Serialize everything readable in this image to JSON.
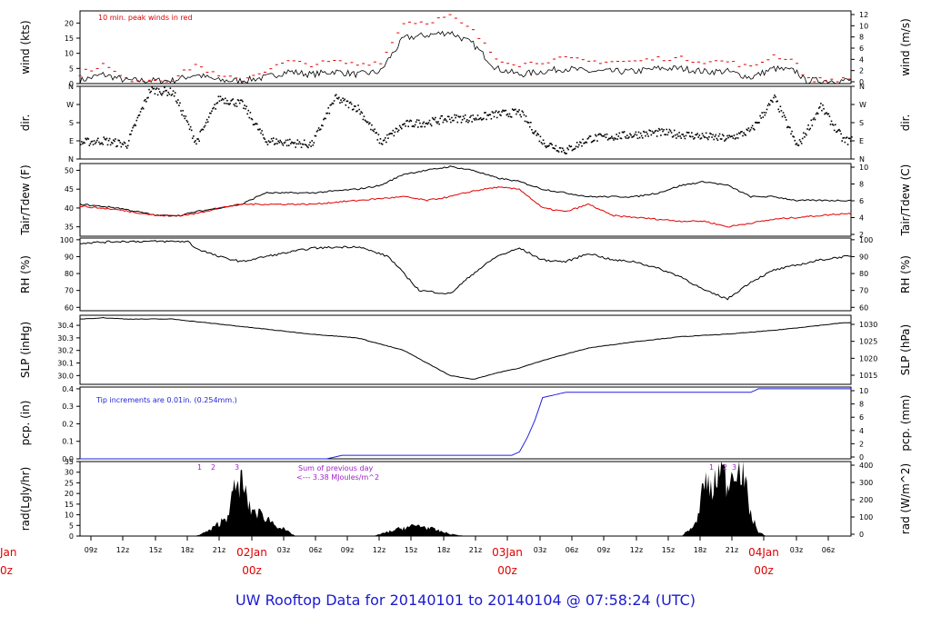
{
  "footer_title": "UW Rooftop Data for 20140101  to  20140104 @ 07:58:24  (UTC)",
  "x_ticks": [
    "09z",
    "12z",
    "15z",
    "18z",
    "21z",
    "00z",
    "03z",
    "06z",
    "09z",
    "12z",
    "15z",
    "18z",
    "21z",
    "00z",
    "03z",
    "06z",
    "09z",
    "12z",
    "15z",
    "18z",
    "21z",
    "00z",
    "03z",
    "06z"
  ],
  "day_labels": [
    {
      "date": "02Jan",
      "time": "00z"
    },
    {
      "date": "03Jan",
      "time": "00z"
    },
    {
      "date": "04Jan",
      "time": "00z"
    }
  ],
  "clipped_day_label": {
    "date": "Jan",
    "time": "0z"
  },
  "colors": {
    "accent_red": "#e00000",
    "title_blue": "#1a1ad0",
    "precip_blue": "#2222dd",
    "annotation_purple": "#a020c8",
    "trace": "#000000",
    "frame": "#000000"
  },
  "chart_data": [
    {
      "type": "line",
      "panel": "wind",
      "ylabel": "wind (kts)",
      "ylabel_right": "wind (m/s)",
      "ylim": [
        0,
        24
      ],
      "yticks": [
        0,
        5,
        10,
        15,
        20
      ],
      "yticks_right": [
        0,
        2,
        4,
        6,
        8,
        10,
        12
      ],
      "annotation": "10 min. peak winds in red",
      "series": [
        {
          "name": "wind",
          "color": "#000000",
          "x": [
            0,
            3,
            6,
            9,
            12,
            15,
            18,
            21,
            24,
            27,
            30,
            33,
            36,
            39,
            40,
            42,
            45,
            48,
            51,
            54,
            57,
            60,
            63,
            66,
            69,
            72,
            75,
            78,
            81,
            84,
            87,
            90,
            93,
            94,
            96,
            99
          ],
          "values": [
            1,
            3,
            1,
            1,
            1,
            3,
            1,
            1,
            2,
            4,
            3,
            4,
            3,
            4,
            8,
            15,
            16,
            17,
            13,
            5,
            3,
            4,
            5,
            4,
            4,
            4,
            5,
            5,
            4,
            4,
            2,
            5,
            4,
            1,
            1,
            1
          ]
        },
        {
          "name": "peak",
          "color": "#e00000",
          "x": [
            0,
            3,
            6,
            9,
            12,
            15,
            18,
            21,
            24,
            27,
            30,
            33,
            36,
            39,
            40,
            42,
            45,
            48,
            51,
            54,
            57,
            60,
            63,
            66,
            69,
            72,
            75,
            78,
            81,
            84,
            87,
            90,
            93,
            94,
            96,
            99
          ],
          "values": [
            3,
            6,
            1,
            1,
            1,
            6,
            2,
            1,
            4,
            7,
            6,
            7,
            6,
            7,
            11,
            20,
            20,
            22,
            17,
            8,
            6,
            7,
            8,
            7,
            7,
            7,
            8,
            8,
            7,
            7,
            5,
            9,
            7,
            1,
            1,
            1
          ]
        }
      ]
    },
    {
      "type": "scatter",
      "panel": "direction",
      "ylabel": "dir.",
      "ylabel_right": "dir.",
      "yticks_labels": [
        "N",
        "W",
        "S",
        "E",
        "N"
      ],
      "yticks_values": [
        360,
        270,
        180,
        90,
        0
      ],
      "ylim": [
        0,
        360
      ],
      "series": [
        {
          "name": "direction",
          "x": [
            0,
            3,
            6,
            9,
            12,
            15,
            18,
            21,
            24,
            27,
            30,
            33,
            36,
            39,
            42,
            45,
            48,
            51,
            54,
            57,
            60,
            63,
            66,
            69,
            72,
            75,
            78,
            81,
            84,
            87,
            90,
            93,
            96,
            99
          ],
          "values": [
            80,
            90,
            70,
            340,
            330,
            80,
            300,
            270,
            90,
            80,
            70,
            300,
            250,
            80,
            170,
            180,
            200,
            200,
            220,
            230,
            80,
            40,
            100,
            110,
            120,
            130,
            120,
            110,
            100,
            140,
            300,
            60,
            260,
            90
          ]
        }
      ]
    },
    {
      "type": "line",
      "panel": "temperature",
      "ylabel": "Tair/Tdew (F)",
      "ylabel_right": "Tair/Tdew (C)",
      "ylim": [
        32.5,
        51.8
      ],
      "yticks": [
        35,
        40,
        45,
        50
      ],
      "yticks_right": [
        2,
        4,
        6,
        8,
        10
      ],
      "series": [
        {
          "name": "Tair",
          "color": "#000000",
          "x": [
            0,
            5,
            10,
            13,
            15,
            18,
            21,
            24,
            30,
            36,
            39,
            42,
            45,
            48,
            51,
            54,
            57,
            60,
            63,
            66,
            69,
            72,
            75,
            78,
            81,
            84,
            87,
            90,
            93,
            96,
            99
          ],
          "values": [
            41,
            40,
            38,
            38,
            39,
            40,
            41,
            44,
            44,
            45,
            46,
            49,
            50,
            51,
            50,
            48,
            47,
            45,
            44,
            43,
            43,
            43,
            44,
            46,
            47,
            46,
            43,
            43,
            42,
            42,
            42
          ]
        },
        {
          "name": "Tdew",
          "color": "#e00000",
          "x": [
            0,
            5,
            10,
            13,
            15,
            18,
            21,
            24,
            30,
            36,
            39,
            42,
            45,
            48,
            51,
            54,
            57,
            60,
            63,
            66,
            69,
            72,
            75,
            78,
            81,
            84,
            87,
            90,
            93,
            96,
            99
          ],
          "values": [
            40.5,
            39.5,
            38,
            38,
            38.5,
            40,
            41,
            41,
            41,
            42,
            42.5,
            43,
            42,
            43,
            44.5,
            45.5,
            45,
            40,
            39,
            41,
            38,
            37.5,
            37,
            36.5,
            36.5,
            35,
            36,
            37,
            37.5,
            38,
            38.5
          ]
        }
      ]
    },
    {
      "type": "line",
      "panel": "rh",
      "ylabel": "RH (%)",
      "ylabel_right": "RH (%)",
      "ylim": [
        58,
        101
      ],
      "yticks": [
        60,
        70,
        80,
        90,
        100
      ],
      "yticks_right": [
        60,
        70,
        80,
        90,
        100
      ],
      "series": [
        {
          "name": "RH",
          "color": "#000000",
          "x": [
            0,
            5,
            10,
            14,
            15,
            18,
            21,
            24,
            30,
            36,
            40,
            42,
            44,
            48,
            51,
            54,
            57,
            60,
            63,
            66,
            69,
            72,
            75,
            78,
            81,
            84,
            87,
            90,
            93,
            96,
            99
          ],
          "values": [
            98,
            99,
            99,
            99,
            95,
            90,
            87,
            90,
            95,
            96,
            90,
            80,
            70,
            68,
            80,
            90,
            95,
            88,
            87,
            92,
            88,
            87,
            83,
            78,
            70,
            65,
            75,
            82,
            85,
            88,
            90
          ]
        }
      ]
    },
    {
      "type": "line",
      "panel": "slp",
      "ylabel": "SLP (inHg)",
      "ylabel_right": "SLP (hPa)",
      "ylim": [
        29.93,
        30.48
      ],
      "yticks": [
        30.0,
        30.1,
        30.2,
        30.3,
        30.4
      ],
      "yticks_right": [
        1015,
        1020,
        1025,
        1030
      ],
      "series": [
        {
          "name": "SLP",
          "color": "#000000",
          "x": [
            0,
            3,
            6,
            12,
            15,
            18,
            24,
            30,
            36,
            42,
            45,
            48,
            51,
            54,
            57,
            60,
            66,
            72,
            78,
            84,
            90,
            96,
            99
          ],
          "values": [
            30.45,
            30.46,
            30.45,
            30.45,
            30.43,
            30.41,
            30.37,
            30.33,
            30.3,
            30.2,
            30.1,
            30.0,
            29.97,
            30.02,
            30.06,
            30.12,
            30.22,
            30.27,
            30.31,
            30.33,
            30.36,
            30.4,
            30.42
          ]
        }
      ]
    },
    {
      "type": "line",
      "panel": "precipitation",
      "ylabel": "pcp. (in)",
      "ylabel_right": "pcp. (mm)",
      "ylim": [
        0,
        0.41
      ],
      "yticks": [
        0.0,
        0.1,
        0.2,
        0.3,
        0.4
      ],
      "yticks_right": [
        0,
        2,
        4,
        6,
        8,
        10
      ],
      "annotation": "Tip increments are 0.01in. (0.254mm.)",
      "series": [
        {
          "name": "precip",
          "color": "#2222dd",
          "x": [
            0,
            32,
            34,
            56,
            57,
            58,
            59,
            60,
            61,
            62,
            63,
            87,
            88,
            99
          ],
          "values": [
            0,
            0,
            0.02,
            0.02,
            0.04,
            0.12,
            0.22,
            0.35,
            0.36,
            0.37,
            0.38,
            0.38,
            0.4,
            0.4
          ]
        }
      ]
    },
    {
      "type": "area",
      "panel": "radiation",
      "ylabel": "rad(Lgly/hr)",
      "ylabel_right": "rad (W/m^2)",
      "ylim": [
        0,
        35
      ],
      "yticks": [
        0,
        5,
        10,
        15,
        20,
        25,
        30,
        35
      ],
      "yticks_right": [
        0,
        100,
        200,
        300,
        400
      ],
      "annotation_lines": [
        "Sum of previous day",
        "<--- 3.38 MJoules/m^2"
      ],
      "marker_labels": [
        "1",
        "2",
        "3",
        "1",
        "2",
        "3"
      ],
      "series": [
        {
          "name": "radiation",
          "color": "#000000",
          "x": [
            0,
            15,
            17,
            19,
            20,
            21,
            22,
            24,
            26,
            28,
            32,
            38,
            40,
            42,
            44,
            46,
            48,
            50,
            78,
            80,
            81,
            82,
            83,
            84,
            85,
            86,
            87,
            88,
            89,
            99
          ],
          "values": [
            0,
            0,
            3,
            9,
            21,
            26,
            13,
            9,
            4,
            0,
            0,
            0,
            2,
            4,
            5,
            3,
            1,
            0,
            0,
            6,
            27,
            20,
            33,
            24,
            35,
            30,
            10,
            2,
            0,
            0
          ]
        }
      ]
    }
  ]
}
